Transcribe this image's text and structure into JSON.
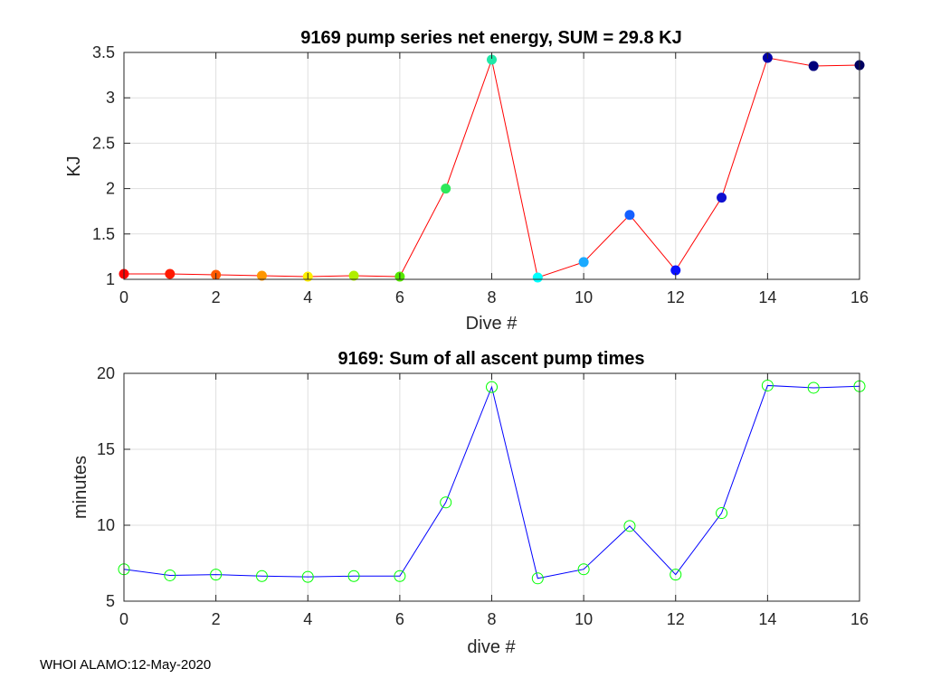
{
  "footer": "WHOI ALAMO:12-May-2020",
  "chart_data": [
    {
      "type": "line",
      "title": "9169 pump series net energy, SUM =  29.8 KJ",
      "xlabel": "Dive #",
      "ylabel": "KJ",
      "xlim": [
        0,
        16
      ],
      "ylim": [
        1,
        3.5
      ],
      "xticks": [
        "0",
        "2",
        "4",
        "6",
        "8",
        "10",
        "12",
        "14",
        "16"
      ],
      "yticks": [
        "1",
        "1.5",
        "2",
        "2.5",
        "3",
        "3.5"
      ],
      "grid": true,
      "line_color": "#ff0000",
      "marker": "filled-circle",
      "x": [
        0,
        1,
        2,
        3,
        4,
        5,
        6,
        7,
        8,
        9,
        10,
        11,
        12,
        13,
        14,
        15,
        16
      ],
      "values": [
        1.06,
        1.06,
        1.05,
        1.04,
        1.03,
        1.04,
        1.03,
        2.0,
        3.42,
        1.02,
        1.19,
        1.71,
        1.1,
        1.9,
        3.44,
        3.35,
        3.36
      ],
      "marker_colors": [
        "#ff0000",
        "#ff1a00",
        "#ff5a00",
        "#ff9600",
        "#ffee00",
        "#b0ee00",
        "#56e800",
        "#2ee85a",
        "#20e8a8",
        "#00ffff",
        "#1aaaff",
        "#1560ff",
        "#0a10ff",
        "#1010d0",
        "#0000a8",
        "#00007c",
        "#000060"
      ]
    },
    {
      "type": "line",
      "title": "9169: Sum of all ascent pump times",
      "xlabel": "dive #",
      "ylabel": "minutes",
      "xlim": [
        0,
        16
      ],
      "ylim": [
        5,
        20
      ],
      "xticks": [
        "0",
        "2",
        "4",
        "6",
        "8",
        "10",
        "12",
        "14",
        "16"
      ],
      "yticks": [
        "5",
        "10",
        "15",
        "20"
      ],
      "grid": true,
      "line_color": "#0000ff",
      "marker": "open-circle",
      "marker_color": "#00ff00",
      "x": [
        0,
        1,
        2,
        3,
        4,
        5,
        6,
        7,
        8,
        9,
        10,
        11,
        12,
        13,
        14,
        15,
        16
      ],
      "values": [
        7.1,
        6.7,
        6.75,
        6.65,
        6.6,
        6.65,
        6.65,
        11.5,
        19.1,
        6.5,
        7.1,
        9.95,
        6.75,
        10.8,
        19.2,
        19.05,
        19.15
      ]
    }
  ]
}
